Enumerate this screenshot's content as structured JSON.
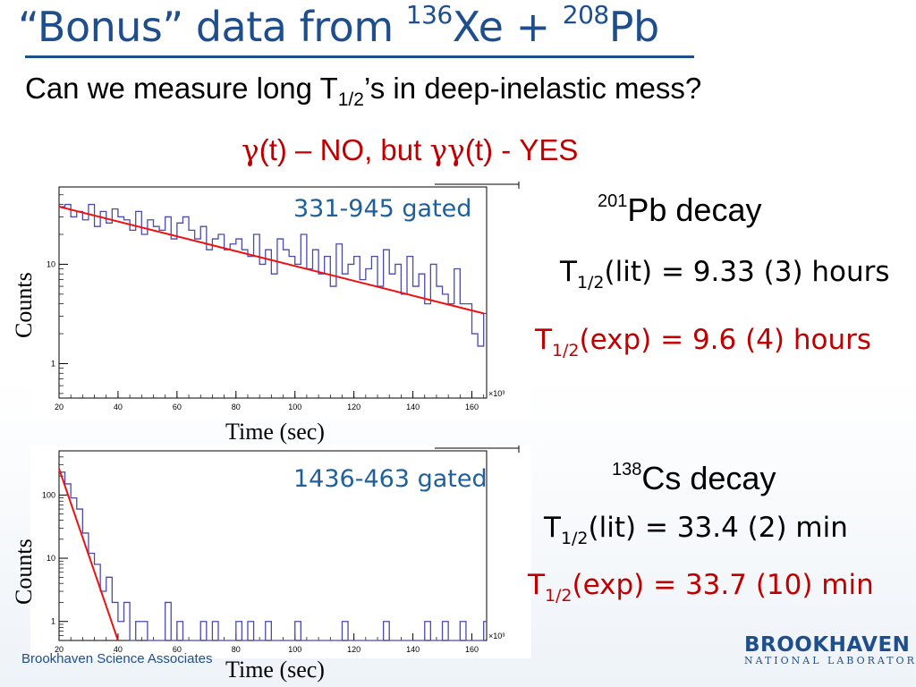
{
  "slide": {
    "title_pre": "“Bonus” data from ",
    "title_sup1": "136",
    "title_mid": "Xe + ",
    "title_sup2": "208",
    "title_post": "Pb",
    "subtitle_pre": "Can we measure long T",
    "subtitle_sub": "1/2",
    "subtitle_post": "’s in deep-inelastic mess?",
    "note_g1": "γ",
    "note_a": "(t) – NO, but ",
    "note_g2": "γγ",
    "note_b": "(t) - YES",
    "footer": "Brookhaven Science Associates",
    "logo_main": "BROOKHAVEN",
    "logo_sub": "NATIONAL LABORATORY"
  },
  "results": [
    {
      "iso_sup": "201",
      "iso_name": "Pb decay",
      "lit_pre": "T",
      "lit_sub": "1/2",
      "lit_post": "(lit) = 9.33 (3) hours",
      "exp_pre": "T",
      "exp_sub": "1/2",
      "exp_post": "(exp) = 9.6 (4) hours"
    },
    {
      "iso_sup": "138",
      "iso_name": "Cs decay",
      "lit_pre": "T",
      "lit_sub": "1/2",
      "lit_post": "(lit) = 33.4 (2) min",
      "exp_pre": "T",
      "exp_sub": "1/2",
      "exp_post": "(exp) = 33.7 (10) min"
    }
  ],
  "chart_data": [
    {
      "type": "line",
      "annotation": "331-945 gated",
      "xlabel": "Time (sec)",
      "ylabel": "Counts",
      "x_multiplier_label": "×10³",
      "y_scale": "log",
      "xlim": [
        20,
        165
      ],
      "ylim": [
        0.45,
        60
      ],
      "xticks": [
        20,
        40,
        60,
        80,
        100,
        120,
        140,
        160
      ],
      "yticks": [
        1,
        10
      ],
      "bin_width": 2,
      "series": [
        {
          "style": "histogram",
          "x": [
            20,
            22,
            24,
            26,
            28,
            30,
            32,
            34,
            36,
            38,
            40,
            42,
            44,
            46,
            48,
            50,
            52,
            54,
            56,
            58,
            60,
            62,
            64,
            66,
            68,
            70,
            72,
            74,
            76,
            78,
            80,
            82,
            84,
            86,
            88,
            90,
            92,
            94,
            96,
            98,
            100,
            102,
            104,
            106,
            108,
            110,
            112,
            114,
            116,
            118,
            120,
            122,
            124,
            126,
            128,
            130,
            132,
            134,
            136,
            138,
            140,
            142,
            144,
            146,
            148,
            150,
            152,
            154,
            156,
            158,
            160,
            162,
            164
          ],
          "values": [
            38,
            40,
            30,
            34,
            28,
            40,
            24,
            34,
            26,
            36,
            30,
            28,
            22,
            34,
            20,
            28,
            24,
            22,
            30,
            18,
            26,
            30,
            22,
            18,
            24,
            14,
            18,
            20,
            14,
            16,
            18,
            14,
            12,
            20,
            10,
            14,
            8,
            18,
            14,
            12,
            10,
            20,
            9,
            14,
            8,
            12,
            6,
            16,
            8,
            10,
            12,
            7,
            9,
            12,
            6,
            14,
            8,
            10,
            5,
            12,
            6,
            8,
            4,
            10,
            6,
            5,
            4,
            9,
            4,
            4,
            2,
            1.5,
            3.2
          ]
        },
        {
          "style": "fit",
          "x": [
            20,
            164
          ],
          "values": [
            38,
            3.2
          ]
        }
      ]
    },
    {
      "type": "line",
      "annotation": "1436-463 gated",
      "xlabel": "Time (sec)",
      "ylabel": "Counts",
      "x_multiplier_label": "×10³",
      "y_scale": "log",
      "xlim": [
        20,
        165
      ],
      "ylim": [
        0.5,
        500
      ],
      "xticks": [
        20,
        40,
        60,
        80,
        100,
        120,
        140,
        160
      ],
      "yticks": [
        1,
        10,
        100
      ],
      "bin_width": 2,
      "series": [
        {
          "style": "histogram",
          "x": [
            20,
            22,
            24,
            26,
            28,
            30,
            32,
            34,
            36,
            38,
            40,
            42,
            44,
            46,
            48,
            50,
            52,
            54,
            56,
            58,
            60,
            62,
            64,
            66,
            68,
            70,
            72,
            74,
            76,
            78,
            80,
            82,
            84,
            86,
            88,
            90,
            92,
            94,
            96,
            98,
            100,
            102,
            104,
            106,
            108,
            110,
            112,
            114,
            116,
            118,
            120,
            122,
            124,
            126,
            128,
            130,
            132,
            134,
            136,
            138,
            140,
            142,
            144,
            146,
            148,
            150,
            152,
            154,
            156,
            158,
            160,
            162,
            164
          ],
          "values": [
            230,
            150,
            90,
            60,
            25,
            12,
            8,
            3,
            5,
            2,
            1,
            2,
            0,
            1,
            1,
            0,
            0,
            0,
            2,
            0,
            1,
            0,
            0,
            0,
            1,
            0,
            1,
            0,
            0,
            0,
            1,
            0,
            1,
            0,
            0,
            1,
            0,
            0,
            0,
            0,
            1,
            0,
            0,
            0,
            0,
            0,
            0,
            0,
            1,
            0,
            0,
            0,
            0,
            0,
            0,
            1,
            0,
            0,
            0,
            0,
            0,
            0,
            1,
            0,
            0,
            1,
            0,
            0,
            1,
            0,
            0,
            0,
            1
          ]
        },
        {
          "style": "fit",
          "x": [
            20,
            40
          ],
          "values": [
            260,
            0.5
          ]
        }
      ]
    }
  ]
}
